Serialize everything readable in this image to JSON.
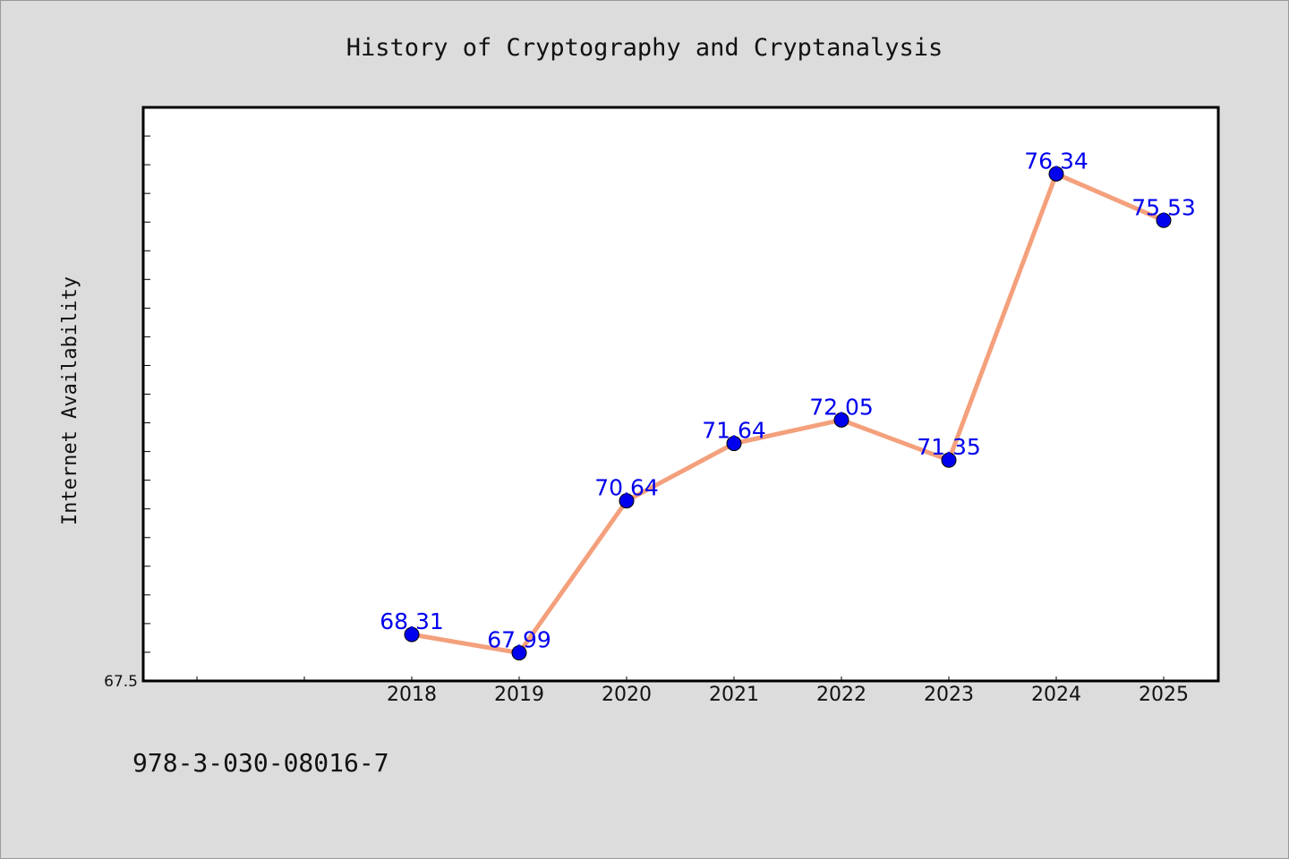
{
  "chart_data": {
    "type": "line",
    "title": "History of Cryptography and Cryptanalysis",
    "ylabel": "Internet Availability",
    "xlabel": "",
    "categories": [
      "2018",
      "2019",
      "2020",
      "2021",
      "2022",
      "2023",
      "2024",
      "2025"
    ],
    "series": [
      {
        "values": [
          68.31,
          67.99,
          70.64,
          71.64,
          72.05,
          71.35,
          76.34,
          75.53
        ],
        "labels": [
          "68.31",
          "67.99",
          "70.64",
          "71.64",
          "72.05",
          "71.35",
          "76.34",
          "75.53"
        ],
        "line_color": "#f4a07c",
        "marker_color": "#0000ee"
      }
    ],
    "ylim": [
      67.5,
      77.5
    ],
    "ytick_labels": [
      "67.5"
    ],
    "grid": false
  },
  "footer": {
    "isbn": "978-3-030-08016-7"
  },
  "colors": {
    "background": "#dcdcdc",
    "plot_background": "#ffffff",
    "axis": "#000000"
  }
}
